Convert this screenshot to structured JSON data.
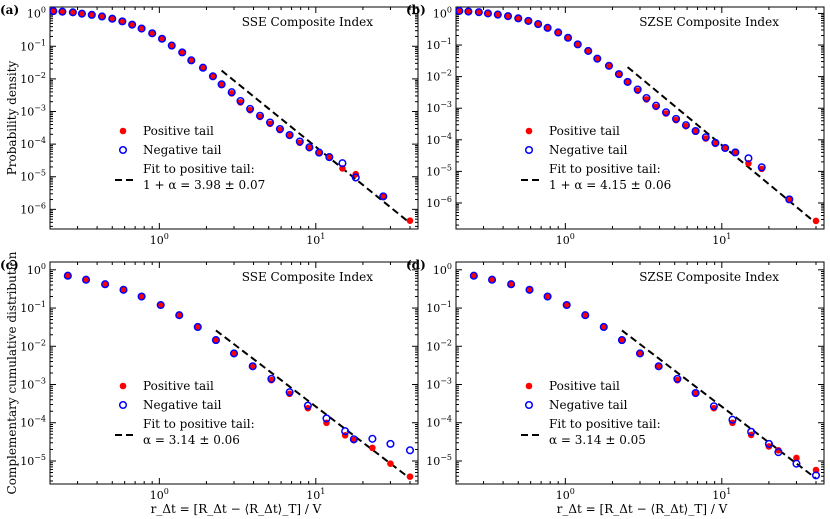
{
  "figure": {
    "ylabel_top": "Probability density",
    "ylabel_bottom": "Complementary cumulative distribution",
    "xlabel": "r_Δt = [R_Δt − ⟨R_Δt⟩_T] / V",
    "colors": {
      "positive": "#ff0000",
      "negative": "#0000ff",
      "fit": "#000000"
    }
  },
  "chart_data": [
    {
      "type": "scatter",
      "panel_label": "(a)",
      "title": "SSE Composite Index",
      "xscale": "log",
      "yscale": "log",
      "xlim": [
        0.2,
        45
      ],
      "ylim": [
        2.5e-07,
        1.6
      ],
      "x_ticks": [
        {
          "v": 1,
          "label": "10^0"
        },
        {
          "v": 10,
          "label": "10^1"
        }
      ],
      "y_ticks": [
        {
          "v": 1,
          "label": "10^0"
        },
        {
          "v": 0.1,
          "label": "10^-1"
        },
        {
          "v": 0.01,
          "label": "10^-2"
        },
        {
          "v": 0.001,
          "label": "10^-3"
        },
        {
          "v": 0.0001,
          "label": "10^-4"
        },
        {
          "v": 1e-05,
          "label": "10^-5"
        },
        {
          "v": 1e-06,
          "label": "10^-6"
        }
      ],
      "series": [
        {
          "name": "Positive tail",
          "marker": "filled-circle",
          "color": "#ff0000",
          "x": [
            0.21,
            0.24,
            0.28,
            0.32,
            0.37,
            0.43,
            0.5,
            0.58,
            0.67,
            0.77,
            0.9,
            1.04,
            1.2,
            1.4,
            1.6,
            1.9,
            2.2,
            2.5,
            2.9,
            3.3,
            3.8,
            4.4,
            5.1,
            5.9,
            6.8,
            7.9,
            9.1,
            10.5,
            12.2,
            14.8,
            18.0,
            27.0,
            40.0
          ],
          "y": [
            1.2,
            1.15,
            1.1,
            1.0,
            0.92,
            0.82,
            0.7,
            0.58,
            0.46,
            0.35,
            0.25,
            0.17,
            0.105,
            0.065,
            0.037,
            0.022,
            0.012,
            0.0066,
            0.0036,
            0.0019,
            0.0011,
            0.00068,
            0.00042,
            0.00027,
            0.00018,
            0.00011,
            7.5e-05,
            5.5e-05,
            4e-05,
            1.8e-05,
            1.2e-05,
            2.4e-06,
            4.5e-07
          ]
        },
        {
          "name": "Negative tail",
          "marker": "open-circle",
          "color": "#0000ff",
          "x": [
            0.21,
            0.24,
            0.28,
            0.32,
            0.37,
            0.43,
            0.5,
            0.58,
            0.67,
            0.77,
            0.9,
            1.04,
            1.2,
            1.4,
            1.6,
            1.9,
            2.2,
            2.5,
            2.9,
            3.3,
            3.8,
            4.4,
            5.1,
            5.9,
            6.8,
            7.9,
            9.1,
            10.5,
            12.2,
            14.8,
            18.0,
            27.0
          ],
          "y": [
            1.2,
            1.15,
            1.1,
            1.0,
            0.92,
            0.82,
            0.7,
            0.58,
            0.46,
            0.35,
            0.25,
            0.17,
            0.105,
            0.065,
            0.037,
            0.022,
            0.012,
            0.0068,
            0.0039,
            0.0021,
            0.0012,
            0.00074,
            0.00046,
            0.00029,
            0.00019,
            0.00012,
            8e-05,
            5.5e-05,
            4e-05,
            2.6e-05,
            9.5e-06,
            2.5e-06
          ]
        }
      ],
      "fit": {
        "name": "Fit to positive tail:",
        "formula": "1 + α = 3.98 ± 0.07",
        "x": [
          2.5,
          40
        ],
        "y": [
          0.018,
          3.8e-07
        ]
      },
      "legend_location": "lower-center"
    },
    {
      "type": "scatter",
      "panel_label": "(b)",
      "title": "SZSE Composite Index",
      "xscale": "log",
      "yscale": "log",
      "xlim": [
        0.2,
        45
      ],
      "ylim": [
        1.5e-07,
        1.6
      ],
      "x_ticks": [
        {
          "v": 1,
          "label": "10^0"
        },
        {
          "v": 10,
          "label": "10^1"
        }
      ],
      "y_ticks": [
        {
          "v": 1,
          "label": "10^0"
        },
        {
          "v": 0.1,
          "label": "10^-1"
        },
        {
          "v": 0.01,
          "label": "10^-2"
        },
        {
          "v": 0.001,
          "label": "10^-3"
        },
        {
          "v": 0.0001,
          "label": "10^-4"
        },
        {
          "v": 1e-05,
          "label": "10^-5"
        },
        {
          "v": 1e-06,
          "label": "10^-6"
        }
      ],
      "series": [
        {
          "name": "Positive tail",
          "marker": "filled-circle",
          "color": "#ff0000",
          "x": [
            0.21,
            0.24,
            0.28,
            0.32,
            0.37,
            0.43,
            0.5,
            0.58,
            0.67,
            0.77,
            0.9,
            1.04,
            1.2,
            1.4,
            1.6,
            1.9,
            2.2,
            2.5,
            2.9,
            3.3,
            3.8,
            4.4,
            5.1,
            5.9,
            6.8,
            7.9,
            9.1,
            10.5,
            12.2,
            14.8,
            18.0,
            27.0,
            40.0
          ],
          "y": [
            1.2,
            1.15,
            1.1,
            1.0,
            0.92,
            0.82,
            0.7,
            0.58,
            0.46,
            0.35,
            0.25,
            0.17,
            0.105,
            0.065,
            0.037,
            0.022,
            0.012,
            0.0066,
            0.0036,
            0.0019,
            0.0011,
            0.00068,
            0.00042,
            0.00027,
            0.00018,
            0.00011,
            7.5e-05,
            5.5e-05,
            4e-05,
            1.8e-05,
            1.2e-05,
            1.3e-06,
            2.7e-07
          ]
        },
        {
          "name": "Negative tail",
          "marker": "open-circle",
          "color": "#0000ff",
          "x": [
            0.21,
            0.24,
            0.28,
            0.32,
            0.37,
            0.43,
            0.5,
            0.58,
            0.67,
            0.77,
            0.9,
            1.04,
            1.2,
            1.4,
            1.6,
            1.9,
            2.2,
            2.5,
            2.9,
            3.3,
            3.8,
            4.4,
            5.1,
            5.9,
            6.8,
            7.9,
            9.1,
            10.5,
            12.2,
            14.8,
            18.0,
            27.0
          ],
          "y": [
            1.2,
            1.15,
            1.1,
            1.0,
            0.92,
            0.82,
            0.7,
            0.58,
            0.46,
            0.35,
            0.25,
            0.17,
            0.105,
            0.065,
            0.037,
            0.022,
            0.012,
            0.0068,
            0.0039,
            0.0021,
            0.0012,
            0.00074,
            0.00046,
            0.00029,
            0.00019,
            0.00012,
            8e-05,
            5.5e-05,
            4e-05,
            2.6e-05,
            1.35e-05,
            1.3e-06
          ]
        }
      ],
      "fit": {
        "name": "Fit to positive tail:",
        "formula": "1 + α = 4.15 ± 0.06",
        "x": [
          2.5,
          40
        ],
        "y": [
          0.02,
          2.3e-07
        ]
      },
      "legend_location": "lower-center"
    },
    {
      "type": "scatter",
      "panel_label": "(c)",
      "title": "SSE Composite Index",
      "xscale": "log",
      "yscale": "log",
      "xlim": [
        0.2,
        45
      ],
      "ylim": [
        2.5e-06,
        1.6
      ],
      "x_ticks": [
        {
          "v": 1,
          "label": "10^0"
        },
        {
          "v": 10,
          "label": "10^1"
        }
      ],
      "y_ticks": [
        {
          "v": 1,
          "label": "10^0"
        },
        {
          "v": 0.1,
          "label": "10^-1"
        },
        {
          "v": 0.01,
          "label": "10^-2"
        },
        {
          "v": 0.001,
          "label": "10^-3"
        },
        {
          "v": 0.0001,
          "label": "10^-4"
        },
        {
          "v": 1e-05,
          "label": "10^-5"
        }
      ],
      "series": [
        {
          "name": "Positive tail",
          "marker": "filled-circle",
          "color": "#ff0000",
          "x": [
            0.26,
            0.34,
            0.45,
            0.59,
            0.77,
            1.02,
            1.34,
            1.76,
            2.3,
            3.0,
            3.95,
            5.2,
            6.8,
            8.9,
            11.7,
            15.4,
            17.5,
            23.0,
            30.0,
            40.0
          ],
          "y": [
            0.7,
            0.55,
            0.42,
            0.3,
            0.2,
            0.12,
            0.065,
            0.032,
            0.0145,
            0.0065,
            0.0029,
            0.0013,
            0.00057,
            0.00024,
            0.0001,
            4.7e-05,
            3.5e-05,
            2.2e-05,
            8.5e-06,
            3.9e-06
          ]
        },
        {
          "name": "Negative tail",
          "marker": "open-circle",
          "color": "#0000ff",
          "x": [
            0.26,
            0.34,
            0.45,
            0.59,
            0.77,
            1.02,
            1.34,
            1.76,
            2.3,
            3.0,
            3.95,
            5.2,
            6.8,
            8.9,
            11.7,
            15.4,
            17.5,
            23.0,
            30.0,
            40.0
          ],
          "y": [
            0.7,
            0.55,
            0.42,
            0.3,
            0.2,
            0.12,
            0.065,
            0.032,
            0.0145,
            0.0065,
            0.003,
            0.0014,
            0.00063,
            0.00028,
            0.00013,
            6e-05,
            3.7e-05,
            3.8e-05,
            2.8e-05,
            1.9e-05
          ]
        }
      ],
      "fit": {
        "name": "Fit to positive tail:",
        "formula": "α = 3.14 ± 0.06",
        "x": [
          2.3,
          40
        ],
        "y": [
          0.026,
          3.5e-06
        ]
      },
      "legend_location": "lower-center"
    },
    {
      "type": "scatter",
      "panel_label": "(d)",
      "title": "SZSE Composite Index",
      "xscale": "log",
      "yscale": "log",
      "xlim": [
        0.2,
        45
      ],
      "ylim": [
        2.5e-06,
        1.6
      ],
      "x_ticks": [
        {
          "v": 1,
          "label": "10^0"
        },
        {
          "v": 10,
          "label": "10^1"
        }
      ],
      "y_ticks": [
        {
          "v": 1,
          "label": "10^0"
        },
        {
          "v": 0.1,
          "label": "10^-1"
        },
        {
          "v": 0.01,
          "label": "10^-2"
        },
        {
          "v": 0.001,
          "label": "10^-3"
        },
        {
          "v": 0.0001,
          "label": "10^-4"
        },
        {
          "v": 1e-05,
          "label": "10^-5"
        }
      ],
      "series": [
        {
          "name": "Positive tail",
          "marker": "filled-circle",
          "color": "#ff0000",
          "x": [
            0.26,
            0.34,
            0.45,
            0.59,
            0.77,
            1.02,
            1.34,
            1.76,
            2.3,
            3.0,
            3.95,
            5.2,
            6.8,
            8.9,
            11.7,
            15.4,
            20.0,
            23.0,
            30.0,
            40.0
          ],
          "y": [
            0.7,
            0.55,
            0.42,
            0.3,
            0.2,
            0.12,
            0.065,
            0.032,
            0.0145,
            0.0065,
            0.0029,
            0.0013,
            0.00057,
            0.00024,
            0.0001,
            4.8e-05,
            2.4e-05,
            1.9e-05,
            1.2e-05,
            5.8e-06
          ]
        },
        {
          "name": "Negative tail",
          "marker": "open-circle",
          "color": "#0000ff",
          "x": [
            0.26,
            0.34,
            0.45,
            0.59,
            0.77,
            1.02,
            1.34,
            1.76,
            2.3,
            3.0,
            3.95,
            5.2,
            6.8,
            8.9,
            11.7,
            15.4,
            20.0,
            23.0,
            30.0,
            40.0
          ],
          "y": [
            0.7,
            0.55,
            0.42,
            0.3,
            0.2,
            0.12,
            0.065,
            0.032,
            0.0145,
            0.0065,
            0.003,
            0.0014,
            0.0006,
            0.00027,
            0.00012,
            5.8e-05,
            2.8e-05,
            1.7e-05,
            8.5e-06,
            4.2e-06
          ]
        }
      ],
      "fit": {
        "name": "Fit to positive tail:",
        "formula": "α = 3.14 ± 0.05",
        "x": [
          2.3,
          40
        ],
        "y": [
          0.026,
          3.5e-06
        ]
      },
      "legend_location": "lower-center"
    }
  ]
}
